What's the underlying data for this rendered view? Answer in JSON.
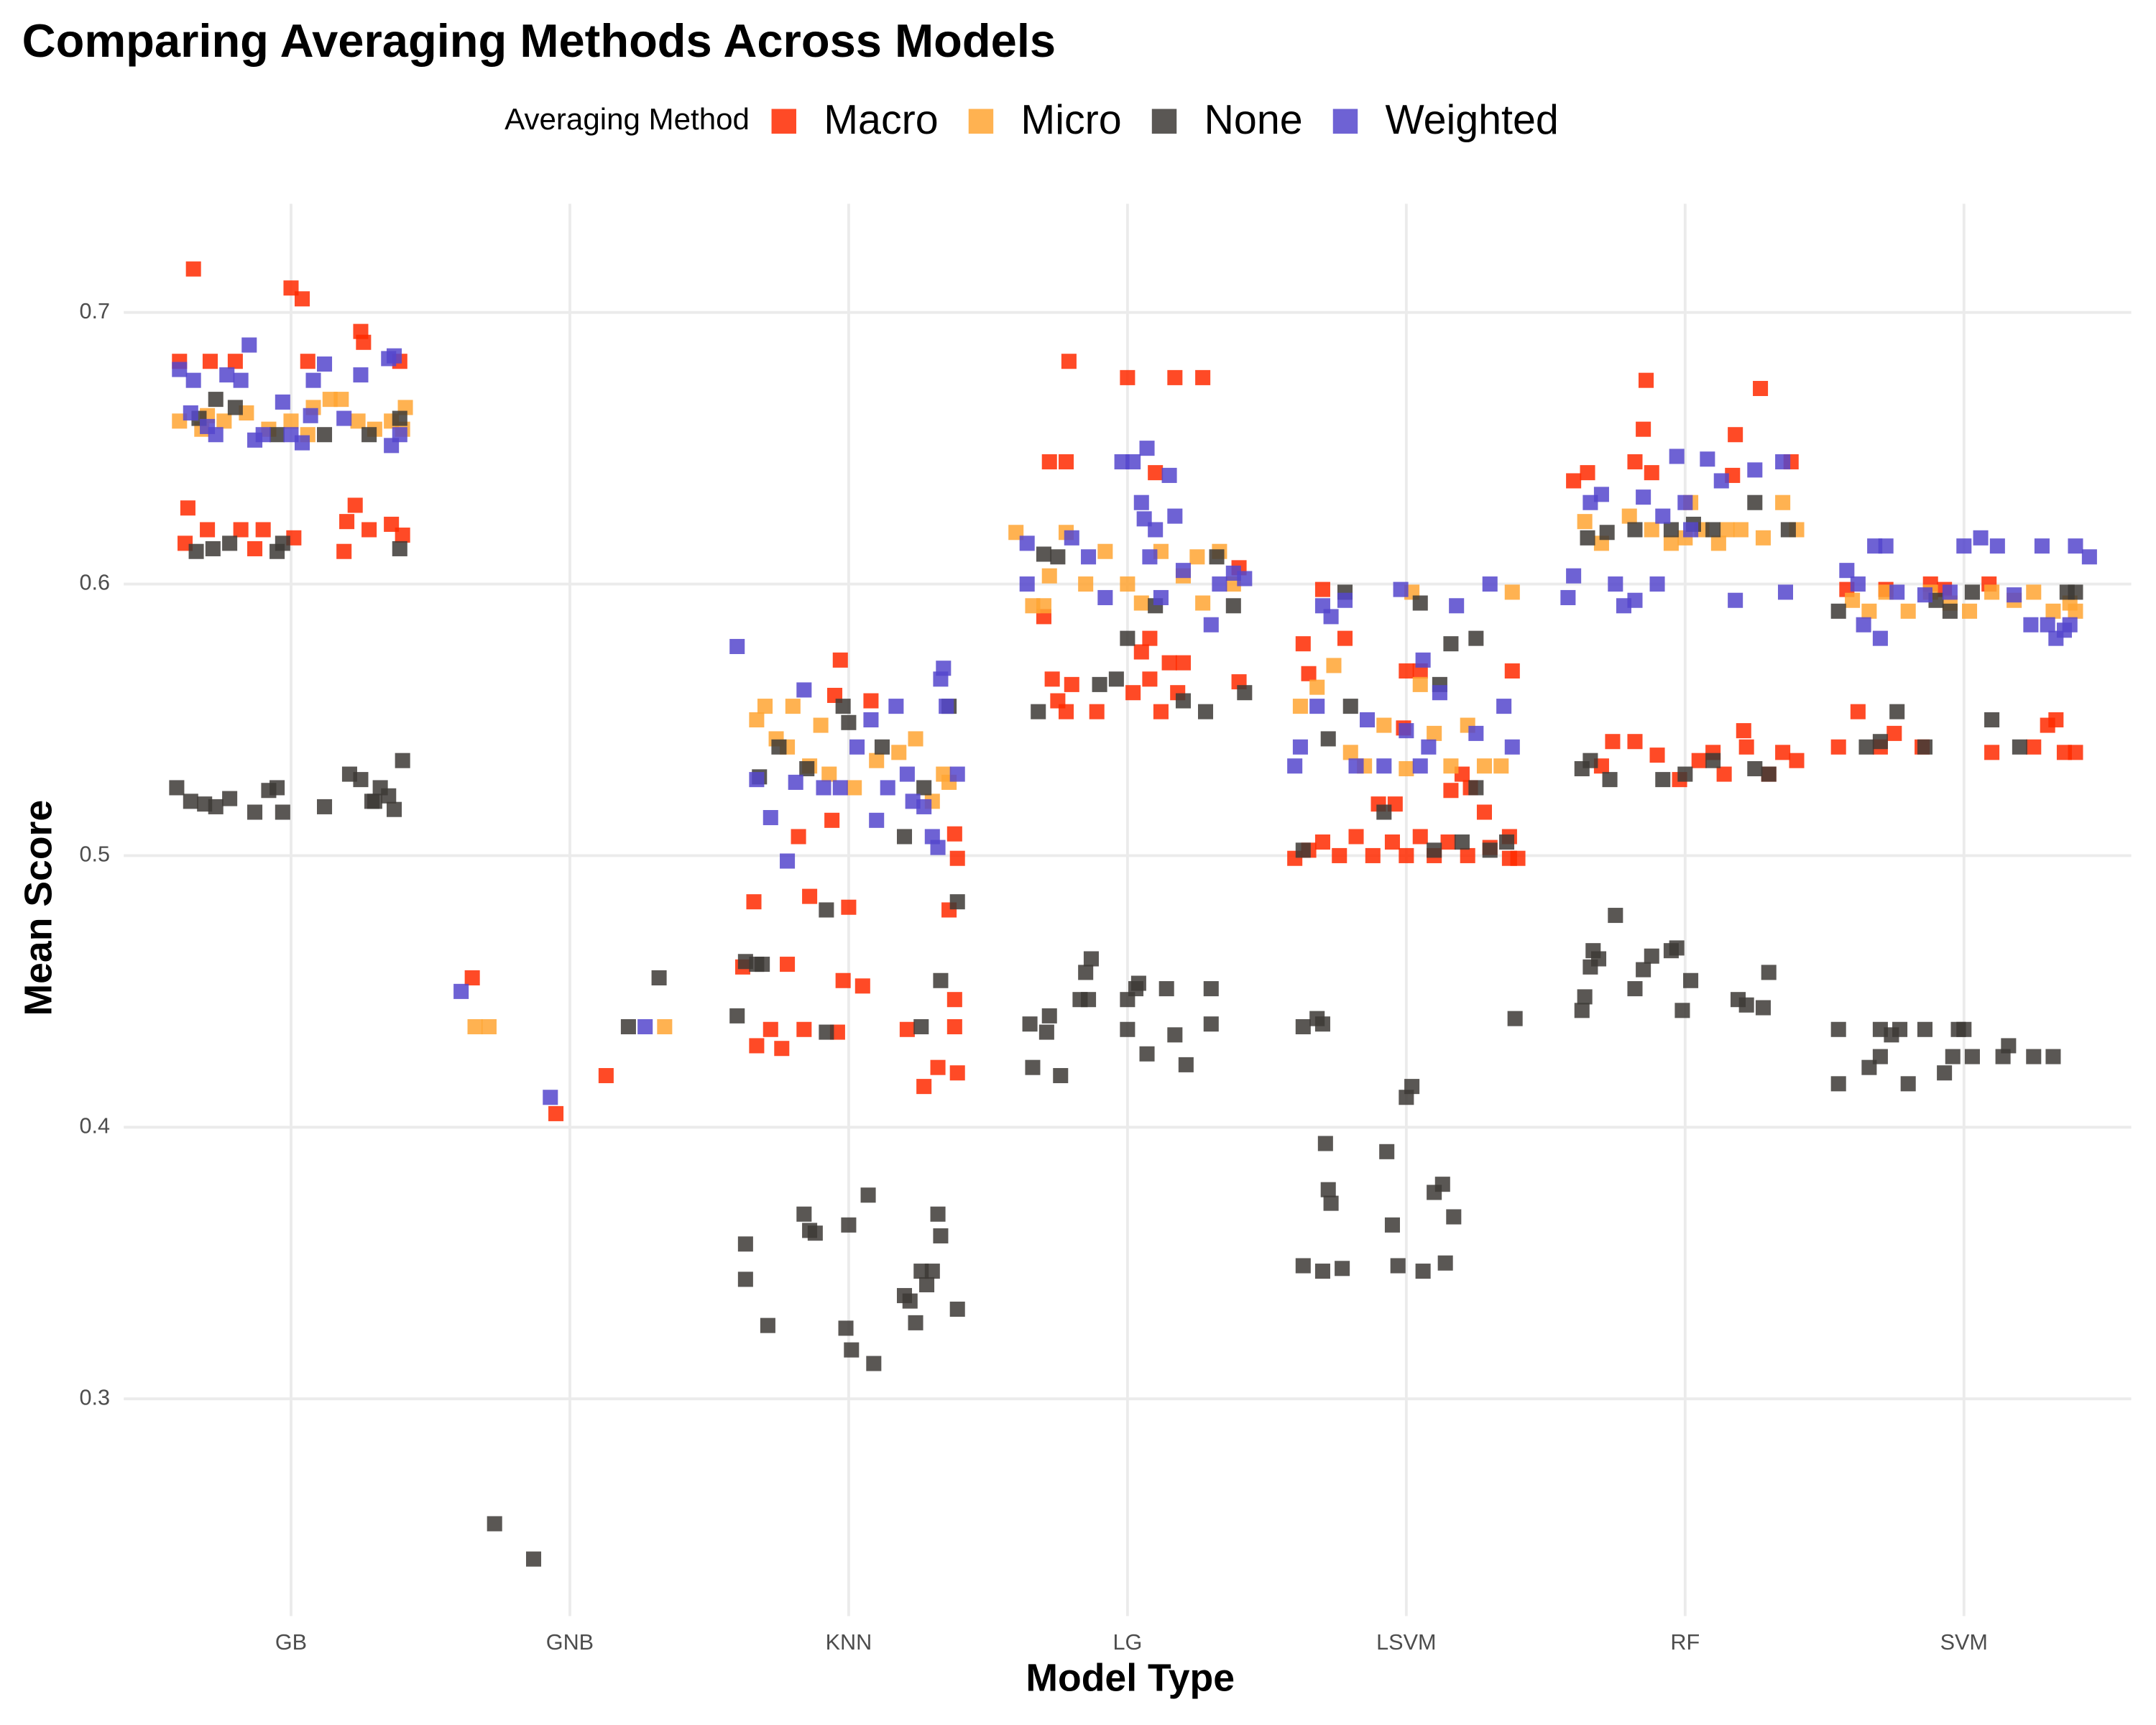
{
  "chart_data": {
    "type": "scatter",
    "title": "Comparing Averaging Methods Across Models",
    "xlabel": "Model Type",
    "ylabel": "Mean Score",
    "legend_title": "Averaging Method",
    "legend_position": "top",
    "grid": true,
    "xlim": [
      0.4,
      7.6
    ],
    "xticks": [
      {
        "value": 1,
        "label": "GB"
      },
      {
        "value": 2,
        "label": "GNB"
      },
      {
        "value": 3,
        "label": "KNN"
      },
      {
        "value": 4,
        "label": "LG"
      },
      {
        "value": 5,
        "label": "LSVM"
      },
      {
        "value": 6,
        "label": "RF"
      },
      {
        "value": 7,
        "label": "SVM"
      }
    ],
    "ylim": [
      0.22,
      0.74
    ],
    "yticks": [
      0.3,
      0.4,
      0.5,
      0.6,
      0.7
    ],
    "series": [
      {
        "name": "Macro",
        "color": "#ff2a00",
        "x": [
          0.6,
          0.65,
          0.71,
          0.8,
          1.0,
          1.04,
          1.06,
          1.25,
          1.26,
          1.39,
          0.63,
          0.7,
          0.82,
          0.9,
          1.01,
          1.2,
          1.23,
          1.28,
          1.36,
          1.4,
          1.19,
          0.62,
          0.87,
          1.65,
          1.95,
          2.13,
          2.62,
          2.66,
          2.67,
          2.72,
          2.76,
          2.78,
          2.82,
          2.84,
          2.86,
          2.94,
          2.96,
          2.98,
          3.0,
          3.05,
          2.97,
          2.95,
          3.08,
          3.21,
          3.27,
          3.32,
          3.36,
          3.38,
          3.38,
          3.39,
          3.39,
          3.38,
          3.7,
          3.72,
          3.78,
          3.73,
          3.75,
          3.78,
          3.89,
          3.8,
          3.79,
          4.0,
          4.17,
          4.27,
          4.1,
          4.05,
          4.08,
          4.15,
          4.2,
          4.12,
          4.02,
          4.4,
          4.4,
          4.08,
          4.18,
          4.6,
          4.65,
          4.7,
          4.76,
          4.82,
          4.88,
          4.95,
          5.0,
          5.05,
          5.1,
          5.15,
          5.22,
          5.3,
          5.37,
          5.4,
          4.63,
          4.65,
          4.7,
          4.78,
          4.9,
          4.96,
          4.99,
          5.0,
          5.05,
          5.16,
          5.2,
          5.23,
          5.28,
          5.38,
          5.37,
          5.6,
          5.65,
          5.85,
          5.86,
          5.82,
          5.88,
          6.27,
          6.17,
          6.18,
          6.38,
          5.7,
          5.74,
          5.82,
          5.9,
          5.98,
          6.05,
          6.1,
          6.22,
          6.21,
          6.3,
          6.35,
          6.4,
          6.14,
          6.55,
          6.62,
          6.7,
          6.75,
          6.85,
          7.1,
          7.25,
          7.3,
          7.33,
          7.36,
          7.4,
          6.58,
          6.72,
          6.88,
          6.93,
          7.09
        ],
        "values": [
          0.682,
          0.716,
          0.682,
          0.682,
          0.709,
          0.705,
          0.682,
          0.693,
          0.689,
          0.682,
          0.628,
          0.62,
          0.62,
          0.62,
          0.617,
          0.623,
          0.629,
          0.62,
          0.622,
          0.618,
          0.612,
          0.615,
          0.613,
          0.455,
          0.405,
          0.419,
          0.459,
          0.483,
          0.43,
          0.436,
          0.429,
          0.46,
          0.507,
          0.436,
          0.485,
          0.513,
          0.435,
          0.454,
          0.481,
          0.452,
          0.572,
          0.559,
          0.557,
          0.436,
          0.415,
          0.422,
          0.48,
          0.437,
          0.447,
          0.42,
          0.499,
          0.508,
          0.588,
          0.645,
          0.645,
          0.565,
          0.557,
          0.553,
          0.553,
          0.563,
          0.682,
          0.676,
          0.676,
          0.676,
          0.641,
          0.575,
          0.58,
          0.571,
          0.571,
          0.553,
          0.56,
          0.606,
          0.564,
          0.565,
          0.56,
          0.499,
          0.502,
          0.505,
          0.5,
          0.507,
          0.5,
          0.505,
          0.5,
          0.507,
          0.5,
          0.505,
          0.5,
          0.503,
          0.499,
          0.499,
          0.578,
          0.567,
          0.598,
          0.58,
          0.519,
          0.519,
          0.547,
          0.568,
          0.568,
          0.524,
          0.53,
          0.525,
          0.516,
          0.568,
          0.507,
          0.638,
          0.641,
          0.657,
          0.675,
          0.645,
          0.641,
          0.672,
          0.64,
          0.655,
          0.645,
          0.533,
          0.542,
          0.542,
          0.537,
          0.528,
          0.535,
          0.538,
          0.54,
          0.546,
          0.53,
          0.538,
          0.535,
          0.53,
          0.54,
          0.553,
          0.54,
          0.545,
          0.54,
          0.538,
          0.54,
          0.548,
          0.55,
          0.538,
          0.538,
          0.598,
          0.598,
          0.6,
          0.598,
          0.6
        ]
      },
      {
        "name": "Micro",
        "color": "#ffa533",
        "x": [
          0.6,
          0.68,
          0.76,
          0.84,
          0.92,
          1.0,
          1.08,
          1.14,
          1.18,
          1.24,
          1.3,
          1.36,
          1.41,
          1.4,
          0.7,
          1.06,
          1.66,
          1.71,
          2.34,
          2.67,
          2.7,
          2.74,
          2.8,
          2.86,
          2.9,
          2.93,
          3.02,
          3.1,
          3.18,
          3.24,
          3.3,
          3.34,
          2.78,
          3.36,
          3.6,
          3.66,
          3.72,
          3.78,
          3.85,
          3.92,
          4.0,
          4.05,
          4.12,
          4.2,
          4.27,
          4.33,
          4.38,
          3.7,
          4.25,
          4.62,
          4.68,
          4.74,
          4.8,
          4.85,
          4.92,
          5.0,
          5.05,
          5.1,
          5.16,
          5.22,
          5.28,
          5.34,
          5.38,
          5.02,
          5.64,
          5.7,
          5.8,
          5.88,
          5.95,
          6.0,
          6.06,
          6.12,
          6.2,
          6.28,
          6.35,
          6.4,
          6.02,
          6.15,
          6.6,
          6.66,
          6.72,
          6.8,
          6.88,
          6.95,
          7.02,
          7.1,
          7.18,
          7.25,
          7.32,
          7.38,
          7.4
        ],
        "values": [
          0.66,
          0.657,
          0.66,
          0.663,
          0.657,
          0.66,
          0.665,
          0.668,
          0.668,
          0.66,
          0.657,
          0.66,
          0.665,
          0.657,
          0.662,
          0.655,
          0.437,
          0.437,
          0.437,
          0.55,
          0.555,
          0.543,
          0.555,
          0.533,
          0.548,
          0.53,
          0.525,
          0.535,
          0.538,
          0.543,
          0.52,
          0.53,
          0.54,
          0.527,
          0.619,
          0.592,
          0.603,
          0.619,
          0.6,
          0.612,
          0.6,
          0.593,
          0.612,
          0.603,
          0.593,
          0.612,
          0.6,
          0.592,
          0.61,
          0.555,
          0.562,
          0.57,
          0.538,
          0.533,
          0.548,
          0.532,
          0.563,
          0.545,
          0.533,
          0.548,
          0.533,
          0.533,
          0.597,
          0.597,
          0.623,
          0.615,
          0.625,
          0.62,
          0.615,
          0.617,
          0.62,
          0.615,
          0.62,
          0.617,
          0.63,
          0.62,
          0.63,
          0.62,
          0.594,
          0.59,
          0.597,
          0.59,
          0.597,
          0.593,
          0.59,
          0.597,
          0.594,
          0.597,
          0.59,
          0.593,
          0.59
        ]
      },
      {
        "name": "None",
        "color": "#3d3a36",
        "x": [
          0.67,
          0.73,
          0.8,
          0.95,
          1.12,
          1.28,
          1.39,
          0.66,
          0.72,
          0.78,
          0.95,
          0.97,
          1.39,
          0.59,
          0.64,
          0.69,
          0.73,
          0.78,
          0.87,
          0.92,
          0.95,
          0.97,
          1.12,
          1.21,
          1.25,
          1.29,
          1.32,
          1.35,
          1.37,
          1.4,
          1.3,
          1.73,
          1.87,
          2.21,
          2.32,
          2.6,
          2.63,
          2.67,
          2.69,
          2.92,
          2.92,
          3.26,
          3.33,
          3.39,
          2.68,
          2.75,
          2.85,
          2.98,
          3.0,
          3.2,
          3.27,
          3.36,
          3.12,
          2.63,
          2.63,
          2.71,
          2.84,
          2.86,
          2.88,
          2.99,
          3.0,
          3.01,
          3.07,
          3.09,
          3.2,
          3.22,
          3.24,
          3.26,
          3.28,
          3.3,
          3.32,
          3.33,
          3.39,
          3.65,
          3.66,
          3.71,
          3.72,
          3.76,
          3.83,
          3.85,
          3.87,
          3.86,
          4.0,
          4.0,
          4.03,
          4.04,
          4.07,
          4.14,
          4.17,
          4.21,
          4.3,
          4.3,
          3.68,
          3.7,
          3.75,
          3.9,
          3.96,
          4.0,
          4.1,
          4.2,
          4.28,
          4.32,
          4.38,
          4.42,
          4.63,
          4.68,
          4.7,
          4.71,
          4.72,
          4.73,
          4.63,
          4.7,
          4.77,
          4.93,
          4.95,
          4.97,
          5.06,
          5.1,
          5.13,
          5.14,
          5.17,
          5.0,
          5.02,
          5.39,
          4.63,
          4.72,
          4.78,
          4.8,
          4.92,
          5.05,
          5.1,
          5.12,
          5.16,
          5.2,
          5.25,
          5.3,
          5.36,
          5.25,
          5.63,
          5.64,
          5.66,
          5.67,
          5.69,
          5.75,
          5.82,
          5.85,
          5.88,
          5.95,
          5.97,
          5.99,
          6.02,
          6.19,
          6.22,
          6.28,
          6.3,
          5.63,
          5.66,
          5.73,
          5.92,
          6.0,
          6.1,
          6.25,
          6.3,
          5.65,
          5.72,
          5.82,
          5.95,
          6.03,
          6.1,
          6.25,
          6.37,
          6.55,
          6.55,
          6.66,
          6.7,
          6.74,
          6.77,
          6.8,
          6.86,
          6.93,
          6.96,
          6.98,
          7.03,
          7.14,
          7.16,
          7.25,
          7.32,
          6.7,
          7.0,
          6.55,
          6.65,
          6.7,
          6.76,
          6.86,
          6.95,
          7.1,
          7.2,
          7.37,
          7.4,
          6.9,
          7.03
        ],
        "values": [
          0.661,
          0.668,
          0.665,
          0.655,
          0.655,
          0.655,
          0.661,
          0.612,
          0.613,
          0.615,
          0.612,
          0.615,
          0.613,
          0.525,
          0.52,
          0.519,
          0.518,
          0.521,
          0.516,
          0.524,
          0.525,
          0.516,
          0.518,
          0.53,
          0.528,
          0.52,
          0.525,
          0.522,
          0.517,
          0.535,
          0.52,
          0.254,
          0.241,
          0.437,
          0.455,
          0.441,
          0.461,
          0.46,
          0.46,
          0.435,
          0.48,
          0.437,
          0.454,
          0.483,
          0.529,
          0.54,
          0.532,
          0.555,
          0.549,
          0.507,
          0.525,
          0.555,
          0.54,
          0.357,
          0.344,
          0.327,
          0.368,
          0.362,
          0.361,
          0.326,
          0.364,
          0.318,
          0.375,
          0.313,
          0.338,
          0.336,
          0.328,
          0.347,
          0.342,
          0.347,
          0.368,
          0.36,
          0.333,
          0.438,
          0.422,
          0.435,
          0.441,
          0.419,
          0.447,
          0.457,
          0.462,
          0.447,
          0.447,
          0.436,
          0.451,
          0.453,
          0.427,
          0.451,
          0.434,
          0.423,
          0.451,
          0.438,
          0.553,
          0.611,
          0.61,
          0.563,
          0.565,
          0.58,
          0.592,
          0.557,
          0.553,
          0.61,
          0.592,
          0.56,
          0.437,
          0.44,
          0.438,
          0.394,
          0.377,
          0.372,
          0.349,
          0.347,
          0.348,
          0.391,
          0.364,
          0.349,
          0.347,
          0.376,
          0.379,
          0.35,
          0.367,
          0.411,
          0.415,
          0.44,
          0.502,
          0.543,
          0.597,
          0.555,
          0.516,
          0.593,
          0.502,
          0.563,
          0.578,
          0.505,
          0.58,
          0.502,
          0.505,
          0.525,
          0.443,
          0.448,
          0.459,
          0.465,
          0.462,
          0.478,
          0.451,
          0.458,
          0.463,
          0.465,
          0.466,
          0.443,
          0.454,
          0.447,
          0.445,
          0.444,
          0.457,
          0.532,
          0.535,
          0.528,
          0.528,
          0.53,
          0.535,
          0.532,
          0.53,
          0.617,
          0.619,
          0.62,
          0.62,
          0.622,
          0.62,
          0.63,
          0.62,
          0.436,
          0.416,
          0.422,
          0.426,
          0.434,
          0.436,
          0.416,
          0.436,
          0.42,
          0.426,
          0.436,
          0.426,
          0.426,
          0.43,
          0.426,
          0.426,
          0.436,
          0.436,
          0.59,
          0.54,
          0.542,
          0.553,
          0.54,
          0.59,
          0.55,
          0.54,
          0.597,
          0.597,
          0.594,
          0.597
        ]
      },
      {
        "name": "Weighted",
        "color": "#5546cc",
        "x": [
          0.6,
          0.65,
          0.64,
          0.7,
          0.73,
          0.77,
          0.82,
          0.85,
          0.87,
          0.9,
          0.97,
          1.0,
          1.04,
          1.07,
          1.08,
          1.12,
          1.19,
          1.25,
          1.35,
          1.37,
          1.36,
          1.39,
          1.61,
          1.93,
          2.27,
          2.6,
          2.67,
          2.72,
          2.78,
          2.81,
          2.84,
          2.91,
          2.97,
          3.03,
          3.08,
          3.1,
          3.14,
          3.17,
          3.21,
          3.23,
          3.27,
          3.3,
          3.32,
          3.33,
          3.34,
          3.35,
          3.39,
          3.64,
          3.64,
          3.8,
          3.86,
          3.92,
          3.98,
          4.02,
          4.07,
          4.05,
          4.06,
          4.08,
          4.1,
          4.15,
          4.17,
          4.12,
          4.2,
          4.3,
          4.33,
          4.38,
          4.42,
          4.6,
          4.62,
          4.68,
          4.7,
          4.73,
          4.78,
          4.82,
          4.86,
          4.92,
          4.98,
          5.0,
          5.06,
          5.08,
          5.12,
          5.18,
          5.25,
          5.3,
          5.35,
          5.38,
          5.05,
          5.58,
          5.6,
          5.66,
          5.7,
          5.75,
          5.78,
          5.82,
          5.85,
          5.9,
          5.97,
          6.0,
          6.02,
          6.08,
          6.13,
          6.18,
          6.25,
          6.35,
          6.36,
          5.92,
          6.58,
          6.62,
          6.68,
          6.72,
          6.64,
          6.7,
          6.76,
          6.86,
          6.95,
          7.0,
          7.06,
          7.12,
          7.18,
          7.28,
          7.3,
          7.33,
          7.36,
          7.38,
          7.4,
          7.45,
          7.24
        ],
        "values": [
          0.679,
          0.675,
          0.663,
          0.658,
          0.655,
          0.677,
          0.675,
          0.688,
          0.653,
          0.655,
          0.667,
          0.655,
          0.652,
          0.662,
          0.675,
          0.681,
          0.661,
          0.677,
          0.683,
          0.684,
          0.651,
          0.655,
          0.45,
          0.411,
          0.437,
          0.577,
          0.528,
          0.514,
          0.498,
          0.527,
          0.561,
          0.525,
          0.525,
          0.54,
          0.55,
          0.513,
          0.525,
          0.555,
          0.53,
          0.52,
          0.518,
          0.507,
          0.503,
          0.565,
          0.569,
          0.555,
          0.53,
          0.615,
          0.6,
          0.617,
          0.61,
          0.595,
          0.645,
          0.645,
          0.65,
          0.63,
          0.624,
          0.61,
          0.62,
          0.64,
          0.625,
          0.595,
          0.605,
          0.585,
          0.6,
          0.604,
          0.602,
          0.533,
          0.54,
          0.555,
          0.592,
          0.588,
          0.594,
          0.533,
          0.55,
          0.533,
          0.598,
          0.546,
          0.572,
          0.54,
          0.56,
          0.592,
          0.545,
          0.6,
          0.555,
          0.54,
          0.533,
          0.595,
          0.603,
          0.63,
          0.633,
          0.6,
          0.592,
          0.594,
          0.632,
          0.6,
          0.647,
          0.63,
          0.62,
          0.646,
          0.638,
          0.594,
          0.642,
          0.645,
          0.597,
          0.625,
          0.605,
          0.6,
          0.614,
          0.614,
          0.585,
          0.58,
          0.597,
          0.596,
          0.597,
          0.614,
          0.617,
          0.614,
          0.596,
          0.614,
          0.585,
          0.58,
          0.583,
          0.585,
          0.614,
          0.61,
          0.585
        ]
      }
    ]
  }
}
